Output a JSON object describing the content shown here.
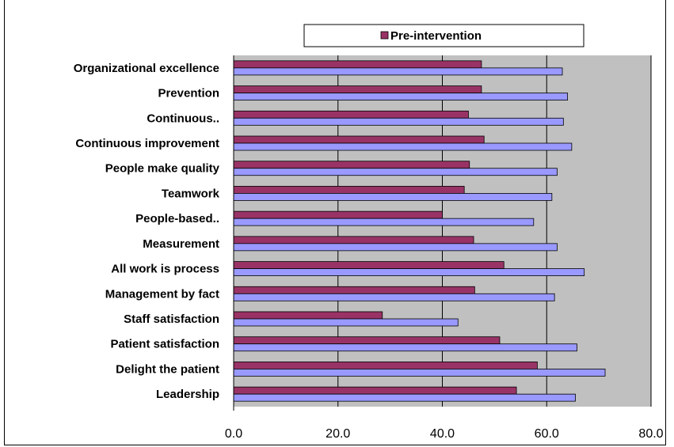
{
  "chart_data": {
    "type": "bar",
    "orientation": "horizontal",
    "categories": [
      "Organizational excellence",
      "Prevention",
      "Continuous..",
      "Continuous improvement",
      "People make quality",
      "Teamwork",
      "People-based..",
      "Measurement",
      "All work is process",
      "Management by fact",
      "Staff satisfaction",
      "Patient satisfaction",
      "Delight the patient",
      "Leadership"
    ],
    "series": [
      {
        "name": "Pre-intervention",
        "color": "#993366",
        "values": [
          47.5,
          47.5,
          45.0,
          48.0,
          45.2,
          44.2,
          40.0,
          46.0,
          51.8,
          46.2,
          28.5,
          51.0,
          58.2,
          54.2
        ]
      },
      {
        "color": "#9999ff",
        "values": [
          63.0,
          64.0,
          63.2,
          64.8,
          62.0,
          61.0,
          57.5,
          62.0,
          67.2,
          61.5,
          43.0,
          65.8,
          71.2,
          65.5
        ]
      }
    ],
    "xlim": [
      0,
      80
    ],
    "x_ticks": [
      "0.0",
      "20.0",
      "40.0",
      "60.0",
      "80.0"
    ],
    "x_tick_values": [
      0,
      20,
      40,
      60,
      80
    ],
    "grid": "vertical",
    "legend_position": "top"
  }
}
